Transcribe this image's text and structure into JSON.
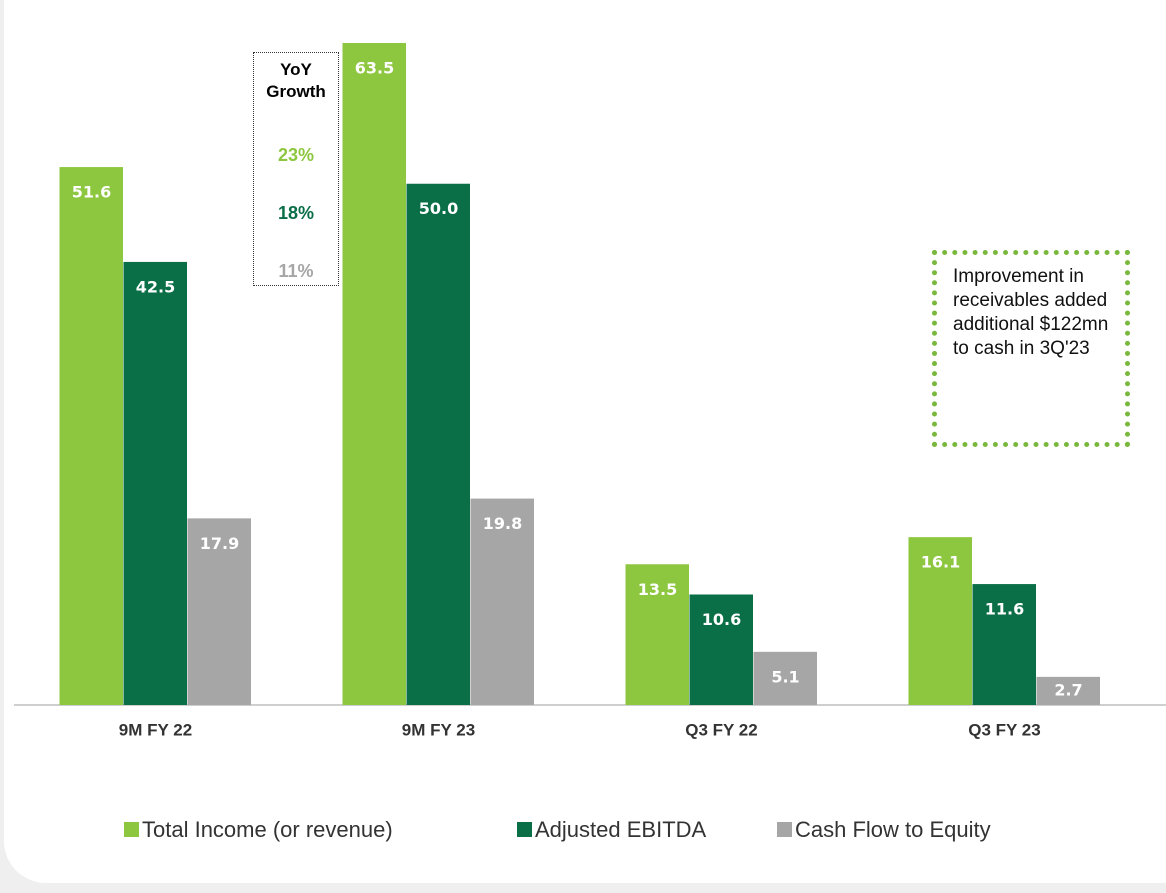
{
  "chart_data": {
    "type": "bar",
    "categories": [
      "9M FY 22",
      "9M FY 23",
      "Q3 FY 22",
      "Q3 FY 23"
    ],
    "series": [
      {
        "name": "Total Income (or revenue)",
        "color": "#8dc63f",
        "values": [
          51.6,
          63.5,
          13.5,
          16.1
        ],
        "value_labels": [
          "51.6",
          "63.5",
          "13.5",
          "16.1"
        ]
      },
      {
        "name": "Adjusted EBITDA",
        "color": "#0a6e47",
        "values": [
          42.5,
          50.0,
          10.6,
          11.6
        ],
        "value_labels": [
          "42.5",
          "50.0",
          "10.6",
          "11.6"
        ]
      },
      {
        "name": "Cash Flow to Equity",
        "color": "#a6a6a6",
        "values": [
          17.9,
          19.8,
          5.1,
          2.7
        ],
        "value_labels": [
          "17.9",
          "19.8",
          "5.1",
          "2.7"
        ]
      }
    ],
    "yoy_growth": {
      "title": "YoY Growth",
      "values": [
        23,
        18,
        11
      ],
      "value_labels": [
        "23%",
        "18%",
        "11%"
      ]
    },
    "annotation": "Improvement in receivables added additional $122mn to cash in 3Q'23"
  }
}
